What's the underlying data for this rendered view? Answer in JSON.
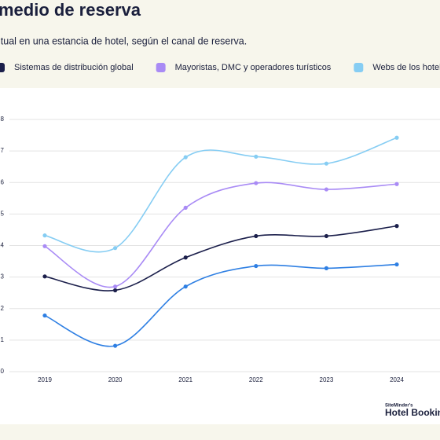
{
  "chart_data": {
    "type": "line",
    "title": "medio de reserva",
    "subtitle": "itual en una estancia de hotel, según el canal de reserva.",
    "categories": [
      "2019",
      "2020",
      "2021",
      "2022",
      "2023",
      "2024"
    ],
    "series": [
      {
        "name": "Sistemas de distribución global",
        "color": "#1b1f4b",
        "values": [
          3.02,
          2.58,
          3.62,
          4.3,
          4.3,
          4.62
        ]
      },
      {
        "name": "Mayoristas, DMC y operadores turísticos",
        "color": "#a98bf5",
        "values": [
          3.98,
          2.7,
          5.2,
          5.98,
          5.78,
          5.95
        ]
      },
      {
        "name": "Webs de los hoteles (rese",
        "color": "#86cdf3",
        "values": [
          4.32,
          3.92,
          6.8,
          6.82,
          6.6,
          7.42
        ]
      },
      {
        "color": "#2e7fe3",
        "values": [
          1.78,
          0.82,
          2.7,
          3.35,
          3.28,
          3.4
        ]
      }
    ],
    "ylim": [
      0,
      8
    ],
    "yticks": [
      0,
      1,
      2,
      3,
      4,
      5,
      6,
      7,
      8
    ],
    "grid": true,
    "brand_small": "SiteMinder's",
    "brand": "Hotel Bookin"
  }
}
